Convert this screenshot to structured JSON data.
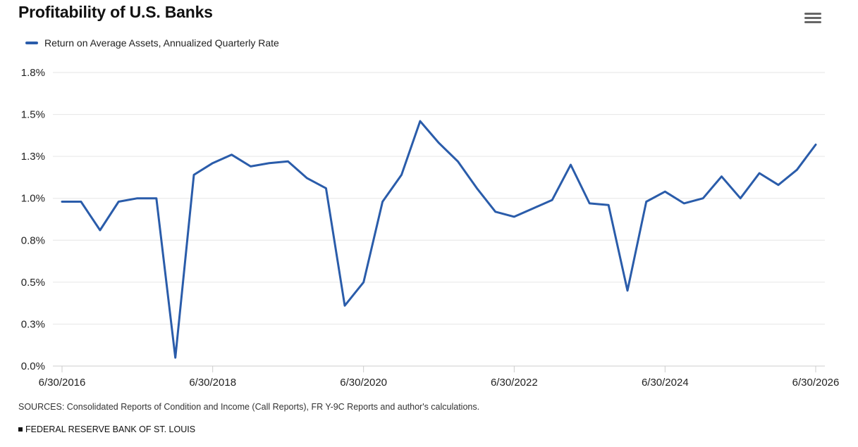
{
  "title": "Profitability of U.S. Banks",
  "menu": {
    "icon": "hamburger-menu-icon"
  },
  "legend": {
    "label": "Return on Average Assets, Annualized Quarterly Rate",
    "color": "#2a5caa"
  },
  "sources": "SOURCES: Consolidated Reports of Condition and Income (Call Reports), FR Y-9C Reports and author's calculations.",
  "footer": "FEDERAL RESERVE BANK OF ST. LOUIS",
  "chart_data": {
    "type": "line",
    "title": "Profitability of U.S. Banks",
    "xlabel": "",
    "ylabel": "",
    "ylim": [
      0,
      1.75
    ],
    "y_ticks": [
      0,
      0.25,
      0.5,
      0.75,
      1.0,
      1.25,
      1.5,
      1.75
    ],
    "y_tick_labels": [
      "0.0%",
      "0.3%",
      "0.5%",
      "0.8%",
      "1.0%",
      "1.3%",
      "1.5%",
      "1.8%"
    ],
    "x_tick_labels": [
      "6/30/2016",
      "6/30/2018",
      "6/30/2020",
      "6/30/2022",
      "6/30/2024",
      "6/30/2026"
    ],
    "grid": true,
    "legend_position": "top-left",
    "series": [
      {
        "name": "Return on Average Assets, Annualized Quarterly Rate",
        "color": "#2a5caa",
        "x": [
          "2016-06-30",
          "2016-09-30",
          "2016-12-31",
          "2017-03-31",
          "2017-06-30",
          "2017-09-30",
          "2017-12-31",
          "2018-03-31",
          "2018-06-30",
          "2018-09-30",
          "2018-12-31",
          "2019-03-31",
          "2019-06-30",
          "2019-09-30",
          "2019-12-31",
          "2020-03-31",
          "2020-06-30",
          "2020-09-30",
          "2020-12-31",
          "2021-03-31",
          "2021-06-30",
          "2021-09-30",
          "2021-12-31",
          "2022-03-31",
          "2022-06-30",
          "2022-09-30",
          "2022-12-31",
          "2023-03-31",
          "2023-06-30",
          "2023-09-30",
          "2023-12-31",
          "2024-03-31",
          "2024-06-30",
          "2024-09-30",
          "2024-12-31",
          "2025-03-31",
          "2025-06-30",
          "2025-09-30",
          "2025-12-31",
          "2026-03-31",
          "2026-06-30"
        ],
        "values": [
          0.98,
          0.98,
          0.81,
          0.98,
          1.0,
          1.0,
          0.05,
          1.14,
          1.21,
          1.26,
          1.19,
          1.21,
          1.22,
          1.12,
          1.06,
          0.36,
          0.5,
          0.98,
          1.14,
          1.46,
          1.33,
          1.22,
          1.06,
          0.92,
          0.89,
          0.94,
          0.99,
          1.2,
          0.97,
          0.96,
          0.45,
          0.98,
          1.04,
          0.97,
          1.0,
          1.13,
          1.0,
          1.15,
          1.08,
          1.17,
          1.32
        ]
      }
    ]
  }
}
